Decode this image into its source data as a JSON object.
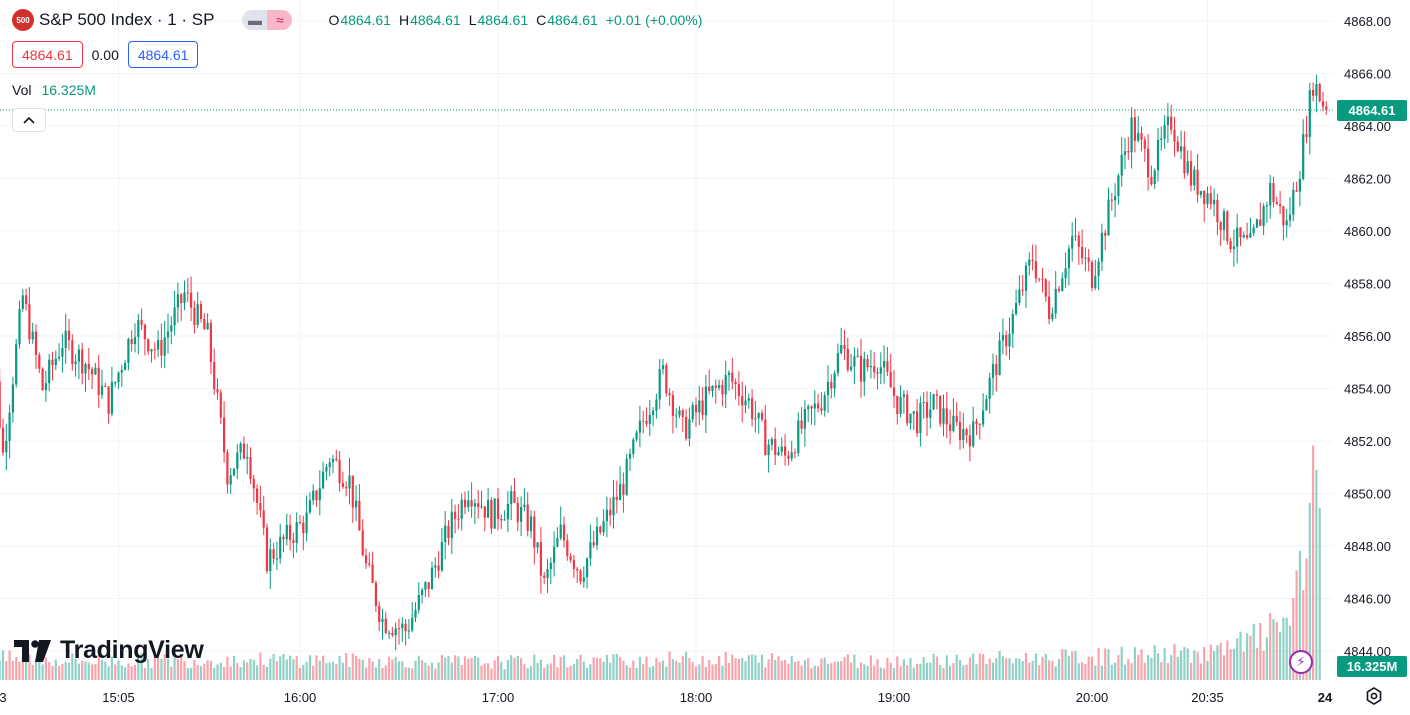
{
  "header": {
    "symbol_badge": "500",
    "title": "S&P 500 Index · 1 · SP",
    "ohlc": [
      {
        "key": "O",
        "value": "4864.61"
      },
      {
        "key": "H",
        "value": "4864.61"
      },
      {
        "key": "L",
        "value": "4864.61"
      },
      {
        "key": "C",
        "value": "4864.61"
      },
      {
        "key": "",
        "value": "+0.01 (+0.00%)"
      }
    ],
    "bid": "4864.61",
    "spread": "0.00",
    "ask": "4864.61",
    "vol_label": "Vol",
    "vol_value": "16.325M"
  },
  "branding": {
    "logo_text": "TradingView"
  },
  "colors": {
    "up": "#089981",
    "down": "#f23645",
    "grid": "#f0f3fa",
    "accent": "#2962ff"
  },
  "icons": [
    "chevron-up-icon",
    "tv-logo-icon",
    "flash-icon",
    "settings-icon"
  ],
  "chart_data": {
    "type": "candlestick",
    "symbol": "S&P 500 Index",
    "interval": "1",
    "ylim": [
      4842.9,
      4868.8
    ],
    "yticks": [
      "4844.00",
      "4846.00",
      "4848.00",
      "4850.00",
      "4852.00",
      "4854.00",
      "4856.00",
      "4858.00",
      "4860.00",
      "4862.00",
      "4864.00",
      "4866.00",
      "4868.00"
    ],
    "xticks": [
      {
        "label": "3",
        "minute": -50
      },
      {
        "label": "15:05",
        "minute": 5
      },
      {
        "label": "16:00",
        "minute": 60
      },
      {
        "label": "17:00",
        "minute": 120
      },
      {
        "label": "18:00",
        "minute": 180
      },
      {
        "label": "19:00",
        "minute": 240
      },
      {
        "label": "20:00",
        "minute": 300
      },
      {
        "label": "20:35",
        "minute": 335
      },
      {
        "label": "24",
        "minute": 412
      }
    ],
    "last_price": "4864.61",
    "last_price_value": 4864.61,
    "volume_last": "16.325M",
    "volume_peak_value": 16.325,
    "grid": true,
    "price_path": [
      [
        -35,
        4858.0
      ],
      [
        -30,
        4851.5
      ],
      [
        -24,
        4857.5
      ],
      [
        -18,
        4854.0
      ],
      [
        -12,
        4855.8
      ],
      [
        -5,
        4855.0
      ],
      [
        2,
        4853.5
      ],
      [
        10,
        4856.5
      ],
      [
        17,
        4855.4
      ],
      [
        25,
        4857.6
      ],
      [
        32,
        4856.0
      ],
      [
        38,
        4850.8
      ],
      [
        44,
        4851.8
      ],
      [
        50,
        4847.5
      ],
      [
        56,
        4848.3
      ],
      [
        62,
        4849.0
      ],
      [
        69,
        4851.4
      ],
      [
        75,
        4850.5
      ],
      [
        80,
        4847.2
      ],
      [
        85,
        4845.2
      ],
      [
        92,
        4844.8
      ],
      [
        99,
        4846.6
      ],
      [
        105,
        4848.6
      ],
      [
        111,
        4850.2
      ],
      [
        118,
        4849.2
      ],
      [
        124,
        4849.6
      ],
      [
        130,
        4848.8
      ],
      [
        134,
        4846.5
      ],
      [
        139,
        4848.5
      ],
      [
        145,
        4847.0
      ],
      [
        152,
        4848.8
      ],
      [
        158,
        4850.4
      ],
      [
        164,
        4852.8
      ],
      [
        170,
        4854.6
      ],
      [
        176,
        4852.4
      ],
      [
        183,
        4853.6
      ],
      [
        190,
        4854.4
      ],
      [
        196,
        4853.5
      ],
      [
        201,
        4852.0
      ],
      [
        207,
        4851.4
      ],
      [
        212,
        4852.5
      ],
      [
        218,
        4853.6
      ],
      [
        224,
        4855.5
      ],
      [
        230,
        4854.7
      ],
      [
        235,
        4855.1
      ],
      [
        241,
        4853.5
      ],
      [
        247,
        4852.8
      ],
      [
        252,
        4853.4
      ],
      [
        258,
        4852.5
      ],
      [
        264,
        4852.3
      ],
      [
        270,
        4854.6
      ],
      [
        276,
        4856.7
      ],
      [
        282,
        4859.0
      ],
      [
        287,
        4857.0
      ],
      [
        294,
        4859.7
      ],
      [
        300,
        4858.3
      ],
      [
        306,
        4861.2
      ],
      [
        312,
        4864.0
      ],
      [
        318,
        4862.3
      ],
      [
        324,
        4864.2
      ],
      [
        330,
        4862.0
      ],
      [
        336,
        4861.3
      ],
      [
        342,
        4859.7
      ],
      [
        348,
        4859.4
      ],
      [
        354,
        4861.6
      ],
      [
        359,
        4860.2
      ],
      [
        363,
        4862.5
      ],
      [
        367,
        4865.7
      ],
      [
        371,
        4864.61
      ]
    ],
    "volume_profile": [
      [
        -40,
        0.35
      ],
      [
        0,
        0.3
      ],
      [
        60,
        0.32
      ],
      [
        120,
        0.28
      ],
      [
        180,
        0.33
      ],
      [
        240,
        0.3
      ],
      [
        300,
        0.36
      ],
      [
        340,
        0.45
      ],
      [
        356,
        0.8
      ],
      [
        362,
        1.3
      ],
      [
        366,
        2.1
      ],
      [
        368,
        3.2
      ],
      [
        369,
        16.325
      ]
    ]
  }
}
